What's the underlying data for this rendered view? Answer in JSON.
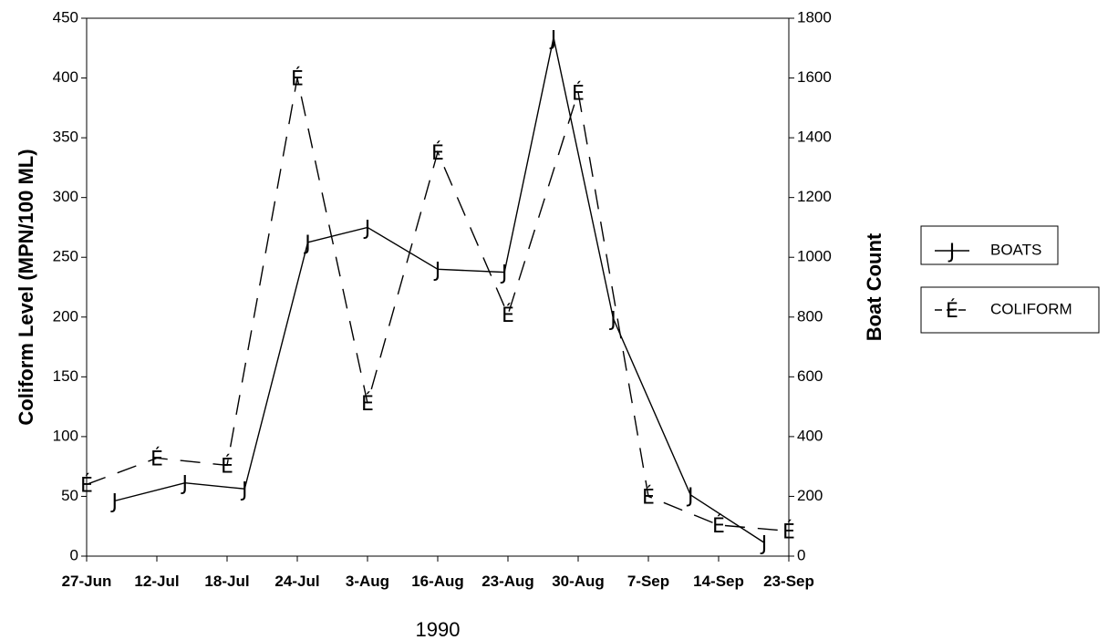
{
  "chart_data": {
    "type": "line",
    "title": "",
    "xlabel": "1990",
    "ylabel_left": "Coliform Level (MPN/100 ML)",
    "ylabel_right": "Boat Count",
    "categories": [
      "27-Jun",
      "12-Jul",
      "18-Jul",
      "24-Jul",
      "3-Aug",
      "16-Aug",
      "23-Aug",
      "30-Aug",
      "7-Sep",
      "14-Sep",
      "23-Sep"
    ],
    "y_left_range": [
      0,
      450
    ],
    "y_left_ticks": [
      0,
      50,
      100,
      150,
      200,
      250,
      300,
      350,
      400,
      450
    ],
    "y_right_range": [
      0,
      1800
    ],
    "y_right_ticks": [
      0,
      200,
      400,
      600,
      800,
      1000,
      1200,
      1400,
      1600,
      1800
    ],
    "grid": false,
    "legend_position": "right",
    "series": [
      {
        "name": "BOATS",
        "axis": "right",
        "marker_glyph": "J",
        "line_style": "solid",
        "x": [
          0.4,
          1.4,
          2.25,
          3.15,
          4.0,
          5.0,
          5.95,
          6.65,
          7.5,
          8.6,
          9.65
        ],
        "values": [
          185,
          245,
          225,
          1050,
          1100,
          960,
          950,
          1735,
          795,
          205,
          45
        ]
      },
      {
        "name": "COLIFORM",
        "axis": "left",
        "marker_glyph": "É",
        "line_style": "dashed",
        "x": [
          0,
          1,
          2,
          3,
          4,
          5,
          6,
          7,
          8,
          9,
          10
        ],
        "values": [
          60,
          82,
          76,
          400,
          128,
          338,
          202,
          388,
          50,
          26,
          21
        ]
      }
    ]
  }
}
